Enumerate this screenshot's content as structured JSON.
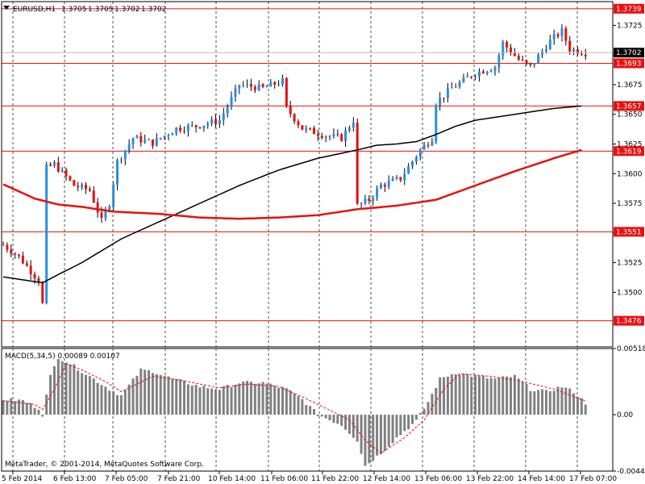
{
  "chart_data": [
    {
      "type": "candlestick",
      "title": "EURUSD,H1",
      "quote": [
        "1.3705",
        "1.3705",
        "1.3702",
        "1.3702"
      ],
      "ylim": [
        1.3454,
        1.3745
      ],
      "grid": true,
      "colors": {
        "up": "#2a8fe0",
        "down": "#e81010",
        "wick": "#000000",
        "level": "#e81010",
        "ma_fast": "#000000",
        "ma_slow": "#e81010",
        "quote_tag": "#000000"
      },
      "tick_labels": [
        "1.3725",
        "1.3700",
        "1.3675",
        "1.3650",
        "1.3625",
        "1.3600",
        "1.3575",
        "1.3550",
        "1.3525",
        "1.3500"
      ],
      "ticks": [
        1.3725,
        1.37,
        1.3675,
        1.365,
        1.3625,
        1.36,
        1.3575,
        1.355,
        1.3525,
        1.35
      ],
      "current_price": "1.3702",
      "current_value": 1.3702,
      "levels": [
        {
          "label": "1.3739",
          "value": 1.3739
        },
        {
          "label": "1.3693",
          "value": 1.3693
        },
        {
          "label": "1.3657",
          "value": 1.3657
        },
        {
          "label": "1.3619",
          "value": 1.3619
        },
        {
          "label": "1.3551",
          "value": 1.3551
        },
        {
          "label": "1.3476",
          "value": 1.3476
        }
      ],
      "key_closes": [
        [
          0,
          1.354
        ],
        [
          4,
          1.353
        ],
        [
          9,
          1.351
        ],
        [
          10,
          1.349
        ],
        [
          11,
          1.3605
        ],
        [
          13,
          1.3608
        ],
        [
          18,
          1.359
        ],
        [
          22,
          1.3586
        ],
        [
          25,
          1.356
        ],
        [
          27,
          1.3575
        ],
        [
          29,
          1.361
        ],
        [
          33,
          1.363
        ],
        [
          38,
          1.3626
        ],
        [
          44,
          1.3638
        ],
        [
          49,
          1.364
        ],
        [
          55,
          1.3645
        ],
        [
          60,
          1.3675
        ],
        [
          66,
          1.3672
        ],
        [
          71,
          1.3678
        ],
        [
          72,
          1.3655
        ],
        [
          76,
          1.3638
        ],
        [
          82,
          1.3632
        ],
        [
          86,
          1.363
        ],
        [
          89,
          1.3645
        ],
        [
          90,
          1.3573
        ],
        [
          93,
          1.3578
        ],
        [
          96,
          1.359
        ],
        [
          101,
          1.3596
        ],
        [
          106,
          1.362
        ],
        [
          109,
          1.363
        ],
        [
          110,
          1.366
        ],
        [
          114,
          1.3672
        ],
        [
          120,
          1.3685
        ],
        [
          125,
          1.369
        ],
        [
          127,
          1.371
        ],
        [
          131,
          1.3696
        ],
        [
          134,
          1.369
        ],
        [
          139,
          1.3712
        ],
        [
          142,
          1.372
        ],
        [
          144,
          1.3705
        ],
        [
          148,
          1.3702
        ]
      ],
      "ma_fast": [
        [
          0,
          1.3513
        ],
        [
          10,
          1.3508
        ],
        [
          14,
          1.3515
        ],
        [
          20,
          1.3525
        ],
        [
          30,
          1.3545
        ],
        [
          40,
          1.356
        ],
        [
          50,
          1.3575
        ],
        [
          60,
          1.359
        ],
        [
          70,
          1.3603
        ],
        [
          80,
          1.3613
        ],
        [
          90,
          1.362
        ],
        [
          95,
          1.3624
        ],
        [
          100,
          1.3625
        ],
        [
          105,
          1.3627
        ],
        [
          110,
          1.3633
        ],
        [
          115,
          1.364
        ],
        [
          120,
          1.3645
        ],
        [
          130,
          1.365
        ],
        [
          140,
          1.3655
        ],
        [
          147,
          1.3657
        ]
      ],
      "ma_slow": [
        [
          0,
          1.3591
        ],
        [
          8,
          1.3579
        ],
        [
          14,
          1.3574
        ],
        [
          20,
          1.3572
        ],
        [
          28,
          1.3568
        ],
        [
          40,
          1.3566
        ],
        [
          50,
          1.3563
        ],
        [
          60,
          1.3562
        ],
        [
          70,
          1.3563
        ],
        [
          80,
          1.3565
        ],
        [
          90,
          1.357
        ],
        [
          100,
          1.3573
        ],
        [
          110,
          1.3578
        ],
        [
          120,
          1.359
        ],
        [
          130,
          1.3602
        ],
        [
          140,
          1.3613
        ],
        [
          147,
          1.362
        ]
      ]
    },
    {
      "type": "bar",
      "title": "MACD(5,34,5) 0.00089 0.00107",
      "ylim": [
        -0.00441,
        0.00518
      ],
      "tick_labels": [
        "0.00518",
        "0.00",
        "-0.00441"
      ],
      "ticks": [
        0.00518,
        0.0,
        -0.00441
      ],
      "colors": {
        "bars": "#808080",
        "signal": "#e81010"
      },
      "key_values": [
        [
          0,
          0.0012
        ],
        [
          5,
          0.0011
        ],
        [
          9,
          0.0005
        ],
        [
          10,
          0.0
        ],
        [
          12,
          0.003
        ],
        [
          14,
          0.0045
        ],
        [
          17,
          0.004
        ],
        [
          22,
          0.003
        ],
        [
          27,
          0.002
        ],
        [
          30,
          0.0015
        ],
        [
          35,
          0.0035
        ],
        [
          38,
          0.0034
        ],
        [
          43,
          0.0028
        ],
        [
          50,
          0.0022
        ],
        [
          55,
          0.002
        ],
        [
          60,
          0.0025
        ],
        [
          66,
          0.0025
        ],
        [
          72,
          0.002
        ],
        [
          76,
          0.0012
        ],
        [
          80,
          0.0
        ],
        [
          86,
          -0.0008
        ],
        [
          90,
          -0.002
        ],
        [
          92,
          -0.004
        ],
        [
          96,
          -0.003
        ],
        [
          100,
          -0.0018
        ],
        [
          105,
          -0.0005
        ],
        [
          108,
          0.001
        ],
        [
          111,
          0.0028
        ],
        [
          115,
          0.0033
        ],
        [
          120,
          0.003
        ],
        [
          125,
          0.0028
        ],
        [
          130,
          0.003
        ],
        [
          134,
          0.002
        ],
        [
          138,
          0.0018
        ],
        [
          142,
          0.0022
        ],
        [
          145,
          0.0018
        ],
        [
          148,
          0.0009
        ]
      ],
      "signal_line": [
        [
          0,
          0.0011
        ],
        [
          8,
          0.0008
        ],
        [
          10,
          0.0004
        ],
        [
          13,
          0.002
        ],
        [
          16,
          0.004
        ],
        [
          20,
          0.0035
        ],
        [
          26,
          0.0026
        ],
        [
          30,
          0.0018
        ],
        [
          34,
          0.0024
        ],
        [
          38,
          0.003
        ],
        [
          45,
          0.0027
        ],
        [
          55,
          0.0021
        ],
        [
          62,
          0.0024
        ],
        [
          70,
          0.0022
        ],
        [
          76,
          0.0014
        ],
        [
          82,
          0.0005
        ],
        [
          88,
          -0.0004
        ],
        [
          92,
          -0.002
        ],
        [
          96,
          -0.003
        ],
        [
          102,
          -0.0018
        ],
        [
          107,
          -0.0004
        ],
        [
          112,
          0.002
        ],
        [
          116,
          0.0032
        ],
        [
          124,
          0.003
        ],
        [
          132,
          0.0026
        ],
        [
          140,
          0.002
        ],
        [
          148,
          0.00107
        ]
      ]
    }
  ],
  "time_axis": {
    "labels": [
      "5 Feb 2014",
      "6 Feb 13:00",
      "7 Feb 05:00",
      "7 Feb 21:00",
      "10 Feb 14:00",
      "11 Feb 06:00",
      "11 Feb 22:00",
      "12 Feb 14:00",
      "13 Feb 06:00",
      "13 Feb 22:00",
      "14 Feb 14:00",
      "17 Feb 07:00"
    ],
    "grid_times": [
      "6 Feb 13:00",
      "7 Feb 05:00",
      "7 Feb 21:00",
      "10 Feb 14:00",
      "11 Feb 06:00",
      "11 Feb 22:00",
      "12 Feb 14:00",
      "13 Feb 06:00",
      "13 Feb 22:00",
      "14 Feb 14:00",
      "17 Feb 07:00"
    ]
  },
  "footer": {
    "copyright": "MetaTrader, © 2001-2014, MetaQuotes Software Corp."
  },
  "icons": {
    "dropdown": "chevron-down-icon"
  }
}
